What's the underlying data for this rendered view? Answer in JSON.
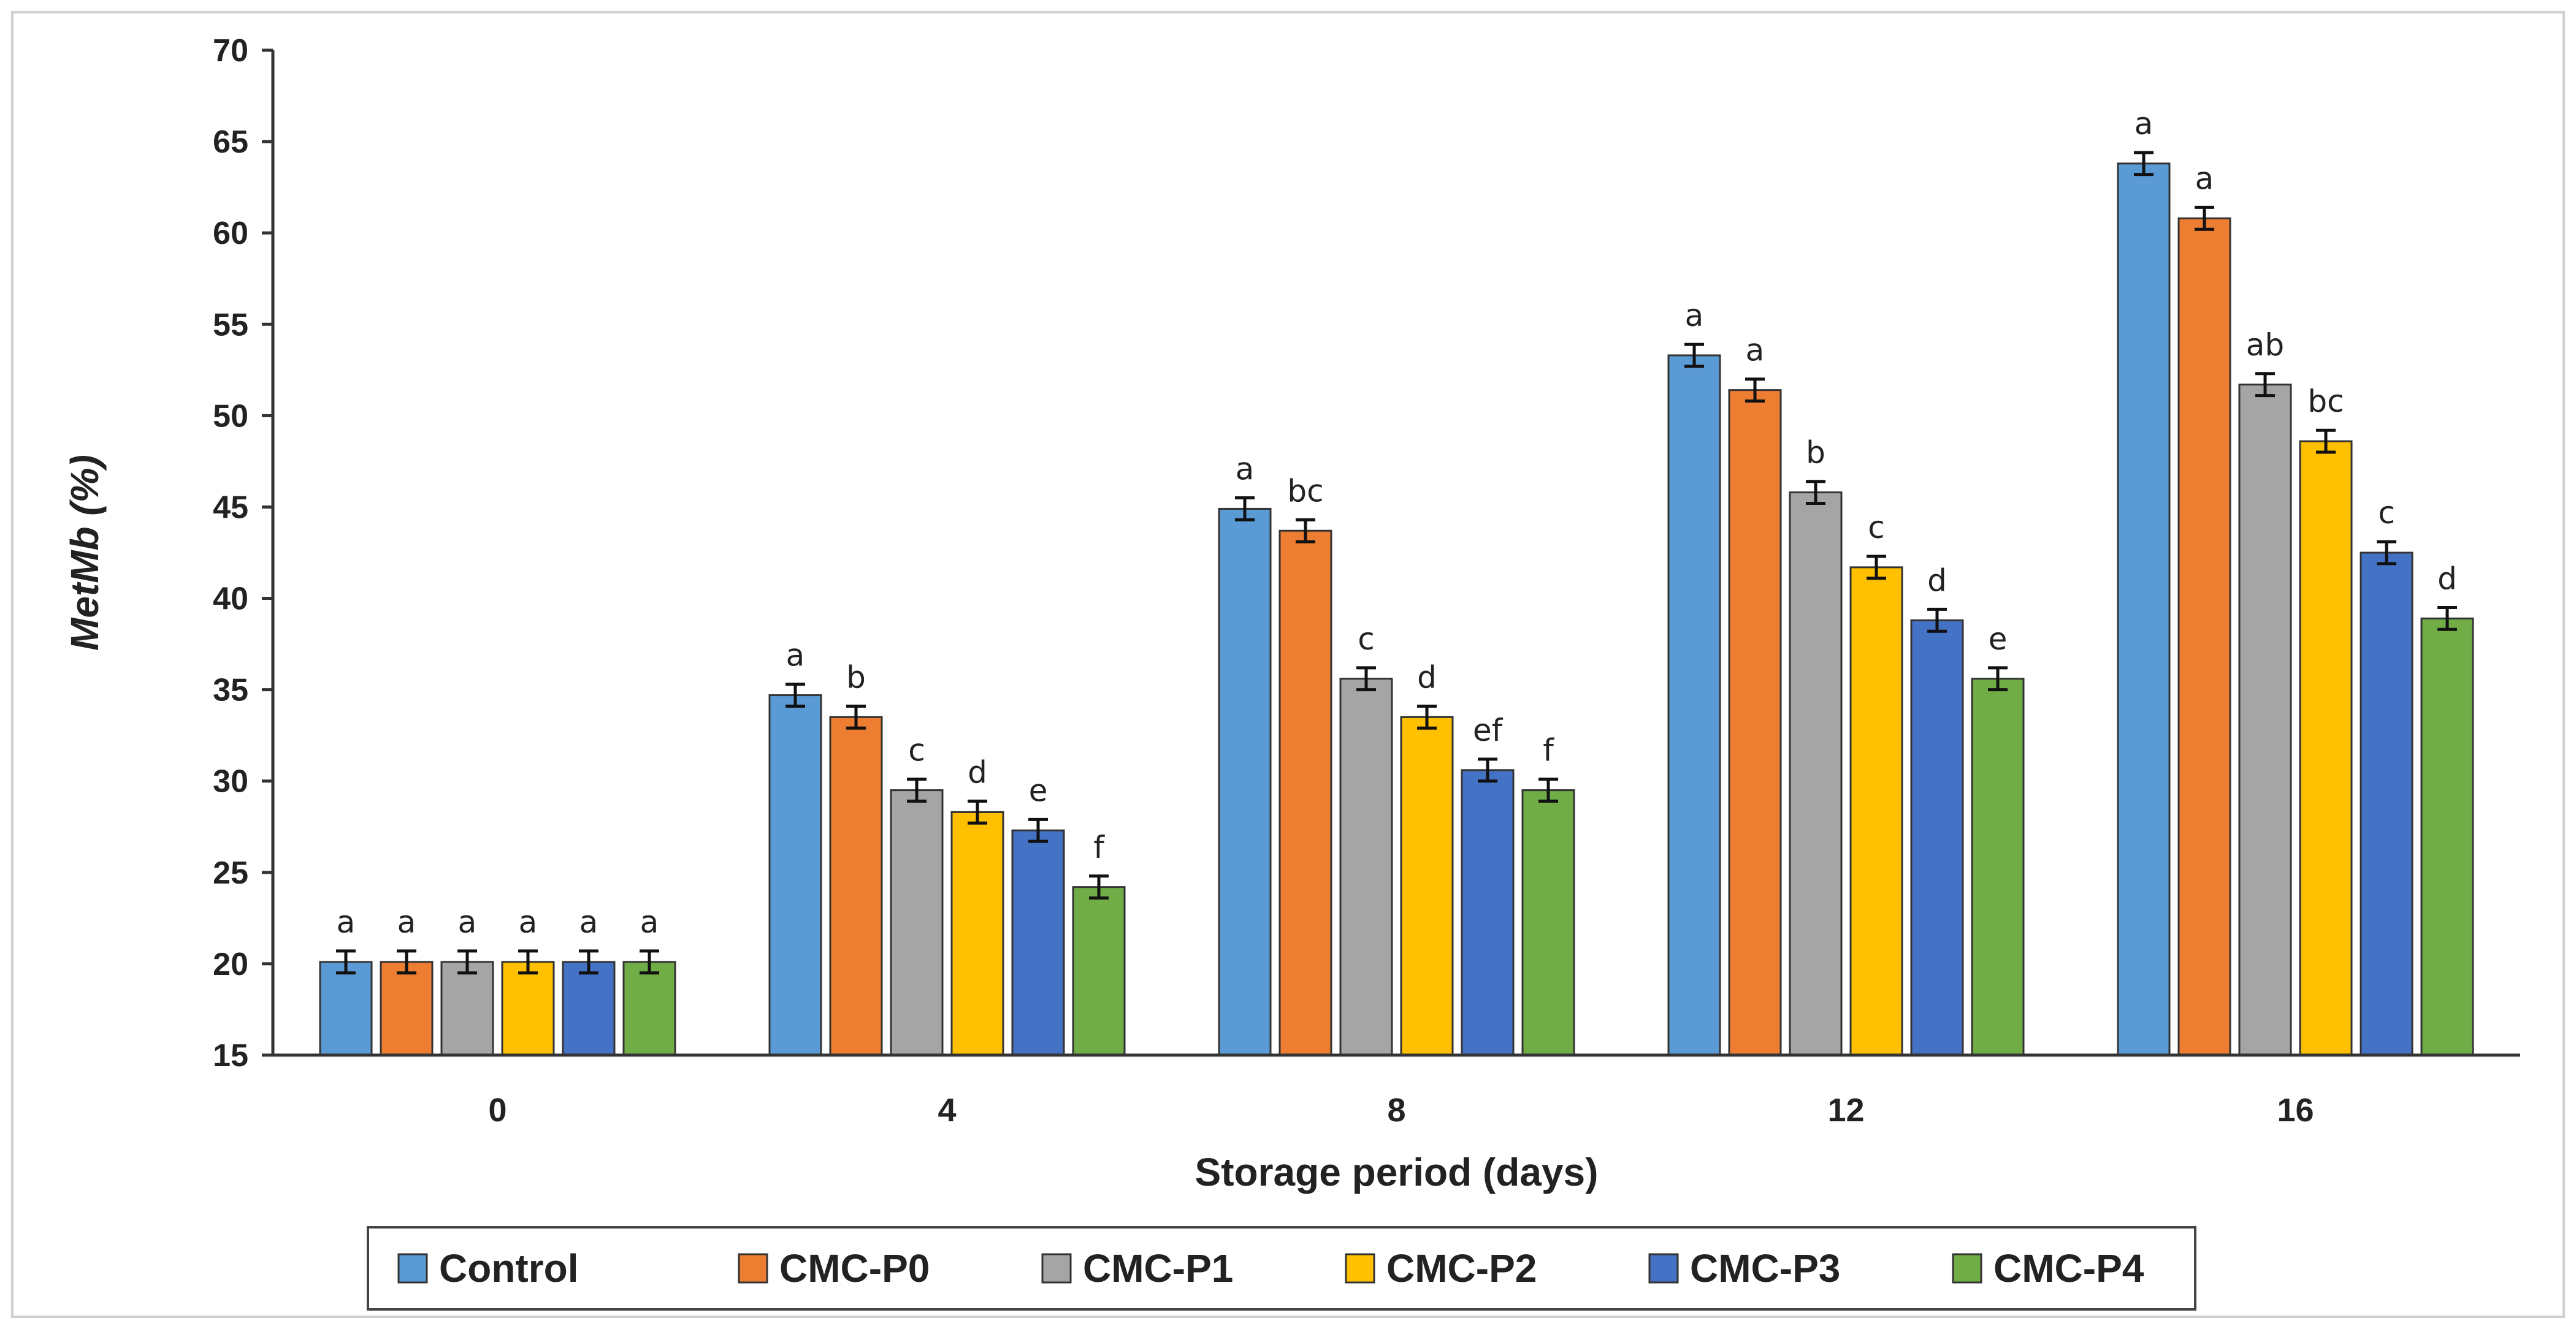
{
  "chart_data": {
    "type": "bar",
    "title": "",
    "xlabel": "Storage period (days)",
    "ylabel": "MetMb (%)",
    "ylim": [
      15,
      70
    ],
    "yticks": [
      15,
      20,
      25,
      30,
      35,
      40,
      45,
      50,
      55,
      60,
      65,
      70
    ],
    "grid": false,
    "legend_position": "bottom",
    "categories": [
      "0",
      "4",
      "8",
      "12",
      "16"
    ],
    "series": [
      {
        "name": "Control",
        "color": "#5B9BD5",
        "values": [
          20.1,
          34.7,
          44.9,
          53.3,
          63.8
        ],
        "errors": [
          0.6,
          0.6,
          0.6,
          0.6,
          0.6
        ],
        "labels": [
          "a",
          "a",
          "a",
          "a",
          "a"
        ]
      },
      {
        "name": "CMC-P0",
        "color": "#ED7D31",
        "values": [
          20.1,
          33.5,
          43.7,
          51.4,
          60.8
        ],
        "errors": [
          0.6,
          0.6,
          0.6,
          0.6,
          0.6
        ],
        "labels": [
          "a",
          "b",
          "bc",
          "a",
          "a"
        ]
      },
      {
        "name": "CMC-P1",
        "color": "#A5A5A5",
        "values": [
          20.1,
          29.5,
          35.6,
          45.8,
          51.7
        ],
        "errors": [
          0.6,
          0.6,
          0.6,
          0.6,
          0.6
        ],
        "labels": [
          "a",
          "c",
          "c",
          "b",
          "ab"
        ]
      },
      {
        "name": "CMC-P2",
        "color": "#FFC000",
        "values": [
          20.1,
          28.3,
          33.5,
          41.7,
          48.6
        ],
        "errors": [
          0.6,
          0.6,
          0.6,
          0.6,
          0.6
        ],
        "labels": [
          "a",
          "d",
          "d",
          "c",
          "bc"
        ]
      },
      {
        "name": "CMC-P3",
        "color": "#4472C4",
        "values": [
          20.1,
          27.3,
          30.6,
          38.8,
          42.5
        ],
        "errors": [
          0.6,
          0.6,
          0.6,
          0.6,
          0.6
        ],
        "labels": [
          "a",
          "e",
          "ef",
          "d",
          "c"
        ]
      },
      {
        "name": "CMC-P4",
        "color": "#70AD47",
        "values": [
          20.1,
          24.2,
          29.5,
          35.6,
          38.9
        ],
        "errors": [
          0.6,
          0.6,
          0.6,
          0.6,
          0.6
        ],
        "labels": [
          "a",
          "f",
          "f",
          "e",
          "d"
        ]
      }
    ]
  }
}
